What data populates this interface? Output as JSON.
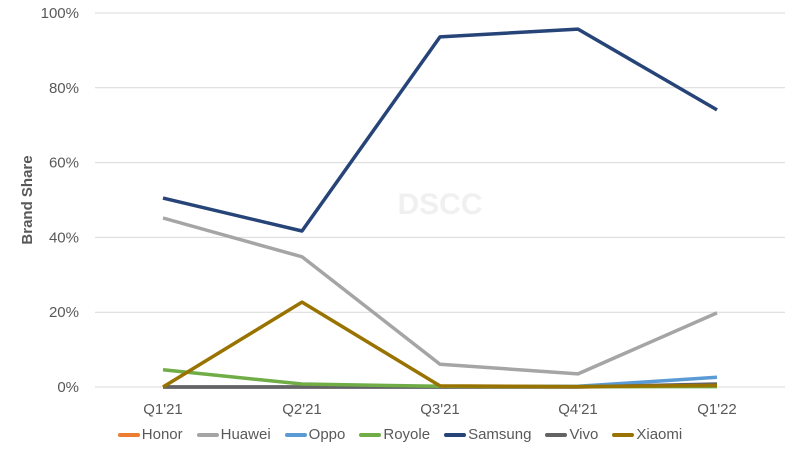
{
  "chart_data": {
    "type": "line",
    "title": "",
    "xlabel": "",
    "ylabel": "Brand Share",
    "ylim": [
      0,
      100
    ],
    "yticks": [
      "0%",
      "20%",
      "40%",
      "60%",
      "80%",
      "100%"
    ],
    "grid": true,
    "legend_position": "bottom",
    "watermark": "DSCC",
    "categories": [
      "Q1'21",
      "Q2'21",
      "Q3'21",
      "Q4'21",
      "Q1'22"
    ],
    "series": [
      {
        "name": "Honor",
        "color": "#ED7D31",
        "values": [
          0,
          0,
          0,
          0,
          0.3
        ]
      },
      {
        "name": "Huawei",
        "color": "#A5A5A5",
        "values": [
          45.2,
          34.8,
          6.1,
          3.5,
          19.8
        ]
      },
      {
        "name": "Oppo",
        "color": "#5B9BD5",
        "values": [
          0,
          0,
          0,
          0.2,
          2.6
        ]
      },
      {
        "name": "Royole",
        "color": "#70AD47",
        "values": [
          4.6,
          0.8,
          0.2,
          0.1,
          0.1
        ]
      },
      {
        "name": "Samsung",
        "color": "#264478",
        "values": [
          50.5,
          41.7,
          93.6,
          95.7,
          74.1
        ]
      },
      {
        "name": "Vivo",
        "color": "#636363",
        "values": [
          0,
          0,
          0,
          0,
          0.8
        ]
      },
      {
        "name": "Xiaomi",
        "color": "#997300",
        "values": [
          0,
          22.7,
          0.3,
          0.1,
          0.4
        ]
      }
    ]
  }
}
